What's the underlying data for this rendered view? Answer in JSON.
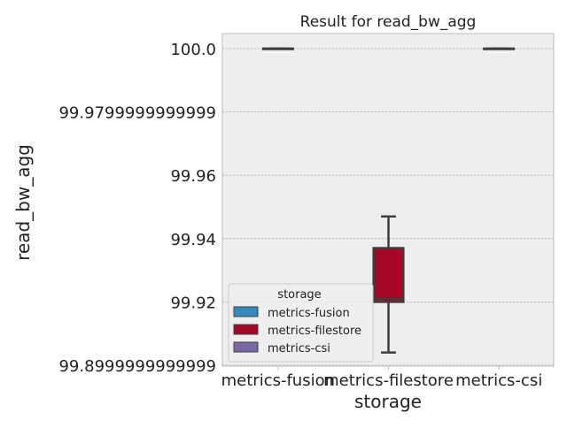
{
  "chart_data": {
    "type": "box",
    "title": "Result for read_bw_agg",
    "xlabel": "storage",
    "ylabel": "read_bw_agg",
    "categories": [
      "metrics-fusion",
      "metrics-filestore",
      "metrics-csi"
    ],
    "ylim": [
      99.9,
      100.0
    ],
    "yticks": [
      99.9,
      99.92,
      99.94,
      99.96,
      99.98,
      100.0
    ],
    "ytick_labels": [
      "99.8999999999999",
      "99.92",
      "99.94",
      "99.96",
      "99.9799999999999",
      "100.0"
    ],
    "grid": true,
    "legend": {
      "title": "storage",
      "placement": "lower-left",
      "entries": [
        "metrics-fusion",
        "metrics-filestore",
        "metrics-csi"
      ]
    },
    "colors": {
      "metrics-fusion": "#348ABD",
      "metrics-filestore": "#A60628",
      "metrics-csi": "#7A68A6"
    },
    "boxes": [
      {
        "category": "metrics-fusion",
        "min": 100.0,
        "q1": 100.0,
        "median": 100.0,
        "q3": 100.0,
        "max": 100.0
      },
      {
        "category": "metrics-filestore",
        "min": 99.904,
        "q1": 99.92,
        "median": 99.921,
        "q3": 99.937,
        "max": 99.947
      },
      {
        "category": "metrics-csi",
        "min": 100.0,
        "q1": 100.0,
        "median": 100.0,
        "q3": 100.0,
        "max": 100.0
      }
    ]
  }
}
